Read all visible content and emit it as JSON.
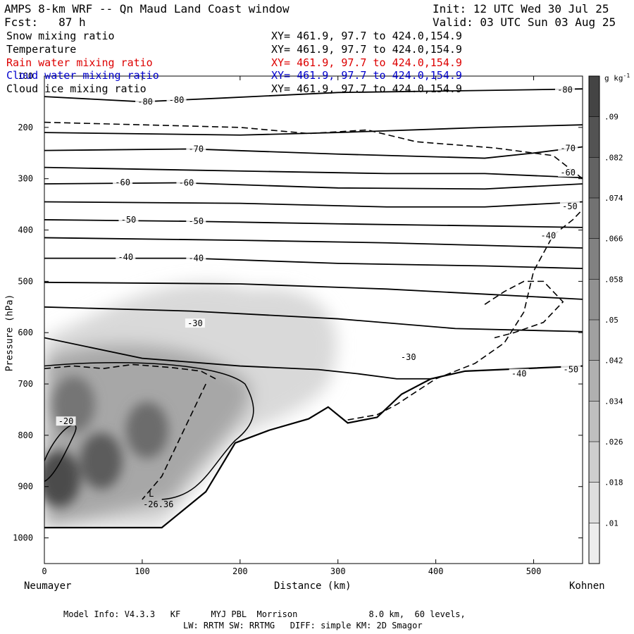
{
  "header": {
    "title": "AMPS 8-km WRF -- Qn Maud Land Coast window",
    "init": "Init: 12 UTC Wed 30 Jul 25",
    "fcst": "Fcst:   87 h",
    "valid": "Valid: 03 UTC Sun 03 Aug 25"
  },
  "variables": [
    {
      "name": "Snow mixing ratio",
      "xy": "XY= 461.9, 97.7 to 424.0,154.9",
      "color": "#000000"
    },
    {
      "name": "Temperature",
      "xy": "XY= 461.9, 97.7 to 424.0,154.9",
      "color": "#000000"
    },
    {
      "name": "Rain water mixing ratio",
      "xy": "XY= 461.9, 97.7 to 424.0,154.9",
      "color": "#dd0000"
    },
    {
      "name": "Cloud water mixing ratio",
      "xy": "XY= 461.9, 97.7 to 424.0,154.9",
      "color": "#0000cc"
    },
    {
      "name": "Cloud ice mixing ratio",
      "xy": "XY= 461.9, 97.7 to 424.0,154.9",
      "color": "#000000"
    }
  ],
  "chart_data": {
    "type": "heatmap",
    "xlabel": "Distance (km)",
    "ylabel": "Pressure (hPa)",
    "xlim": [
      0,
      550
    ],
    "ylim": [
      1050,
      100
    ],
    "x_ticks": [
      0,
      100,
      200,
      300,
      400,
      500
    ],
    "y_ticks": [
      100,
      200,
      300,
      400,
      500,
      600,
      700,
      800,
      900,
      1000
    ],
    "x_end_labels": {
      "left": "Neumayer",
      "right": "Kohnen"
    },
    "colorbar": {
      "unit_label": "g kg",
      "unit_exponent": "-1",
      "labels": [
        ".01",
        ".018",
        ".026",
        ".034",
        ".042",
        ".05",
        ".058",
        ".066",
        ".074",
        ".082",
        ".09"
      ],
      "min": 0.006,
      "max": 0.098
    },
    "snow_maxima": [
      {
        "x": 15,
        "p": 885,
        "v": 0.09
      },
      {
        "x": 58,
        "p": 850,
        "v": 0.082
      },
      {
        "x": 105,
        "p": 790,
        "v": 0.074
      },
      {
        "x": 30,
        "p": 740,
        "v": 0.07
      }
    ],
    "temperature_contour_labels": [
      {
        "label": "-80",
        "x": 103,
        "p": 150
      },
      {
        "label": "-80",
        "x": 135,
        "p": 147
      },
      {
        "label": "-80",
        "x": 532,
        "p": 127
      },
      {
        "label": "-70",
        "x": 155,
        "p": 242
      },
      {
        "label": "-70",
        "x": 535,
        "p": 241
      },
      {
        "label": "-60",
        "x": 80,
        "p": 307
      },
      {
        "label": "-60",
        "x": 145,
        "p": 308
      },
      {
        "label": "-60",
        "x": 535,
        "p": 288
      },
      {
        "label": "-50",
        "x": 86,
        "p": 380
      },
      {
        "label": "-50",
        "x": 155,
        "p": 383
      },
      {
        "label": "-50",
        "x": 537,
        "p": 354
      },
      {
        "label": "-40",
        "x": 83,
        "p": 453
      },
      {
        "label": "-40",
        "x": 155,
        "p": 455
      },
      {
        "label": "-40",
        "x": 515,
        "p": 411
      },
      {
        "label": "-40",
        "x": 485,
        "p": 680
      },
      {
        "label": "-30",
        "x": 154,
        "p": 582
      },
      {
        "label": "-30",
        "x": 372,
        "p": 648
      },
      {
        "label": "-50",
        "x": 538,
        "p": 672
      },
      {
        "label": "-20",
        "x": 22,
        "p": 773
      }
    ],
    "low_marker": {
      "symbol": "L",
      "value": "-26.36",
      "x": 85,
      "p": 925
    },
    "terrain_height_p": [
      [
        0,
        980
      ],
      [
        120,
        980
      ],
      [
        165,
        910
      ],
      [
        195,
        815
      ],
      [
        230,
        790
      ],
      [
        270,
        768
      ],
      [
        290,
        745
      ],
      [
        310,
        776
      ],
      [
        340,
        765
      ],
      [
        365,
        720
      ],
      [
        395,
        690
      ],
      [
        430,
        675
      ],
      [
        550,
        665
      ]
    ]
  },
  "footer": {
    "line1": "Model Info: V4.3.3   KF      MYJ PBL  Morrison              8.0 km,  60 levels,",
    "line2": "LW: RRTM SW: RRTMG   DIFF: simple KM: 2D Smagor"
  }
}
